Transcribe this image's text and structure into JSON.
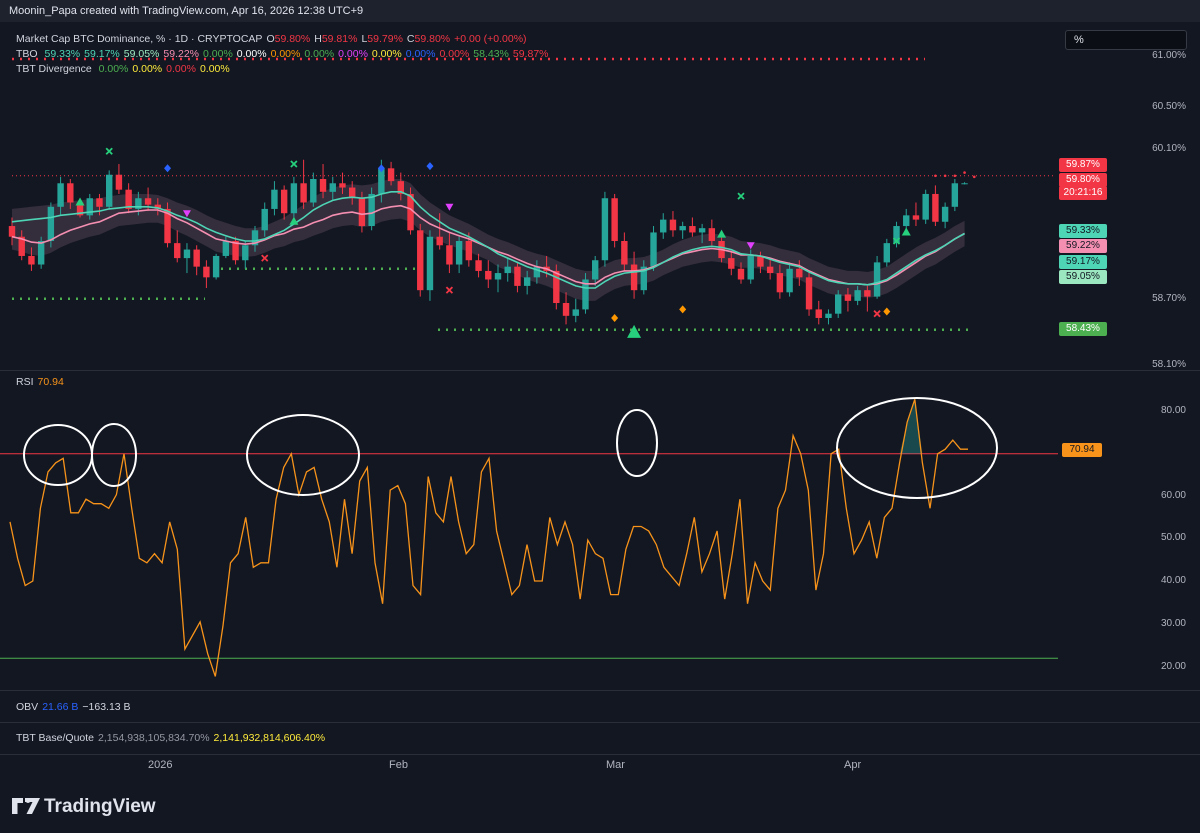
{
  "header": {
    "text": "Moonin_Papa created with TradingView.com, Apr 16, 2026 12:38 UTC+9"
  },
  "symbol_line": {
    "name": "Market Cap BTC Dominance, % · 1D · CRYPTOCAP",
    "o_label": "O",
    "o_value": "59.80%",
    "h_label": "H",
    "h_value": "59.81%",
    "l_label": "L",
    "l_value": "59.79%",
    "c_label": "C",
    "c_value": "59.80%",
    "change": "+0.00 (+0.00%)"
  },
  "tbo_line": {
    "name": "TBO",
    "values": [
      {
        "v": "59.33%",
        "color": "#4dd5b5"
      },
      {
        "v": "59.17%",
        "color": "#4dd5b5"
      },
      {
        "v": "59.05%",
        "color": "#9be8c0"
      },
      {
        "v": "59.22%",
        "color": "#f48fb1"
      },
      {
        "v": "0.00%",
        "color": "#4caf50"
      },
      {
        "v": "0.00%",
        "color": "#ffffff"
      },
      {
        "v": "0.00%",
        "color": "#ff9800"
      },
      {
        "v": "0.00%",
        "color": "#4caf50"
      },
      {
        "v": "0.00%",
        "color": "#e040fb"
      },
      {
        "v": "0.00%",
        "color": "#ffeb3b"
      },
      {
        "v": "0.00%",
        "color": "#2962ff"
      },
      {
        "v": "0.00%",
        "color": "#f23645"
      },
      {
        "v": "58.43%",
        "color": "#4caf50"
      },
      {
        "v": "59.87%",
        "color": "#f23645"
      }
    ]
  },
  "tbt_div_line": {
    "name": "TBT Divergence",
    "values": [
      {
        "v": "0.00%",
        "color": "#4caf50"
      },
      {
        "v": "0.00%",
        "color": "#ffeb3b"
      },
      {
        "v": "0.00%",
        "color": "#f23645"
      },
      {
        "v": "0.00%",
        "color": "#ffeb3b"
      }
    ]
  },
  "unit_box": "%",
  "price_axis": [
    "61.00%",
    "60.50%",
    "60.10%",
    "58.70%",
    "58.10%"
  ],
  "price_tags": [
    {
      "label": "59.87%",
      "color": "#f23645"
    },
    {
      "label": "59.80%",
      "color": "#f23645"
    },
    {
      "label": "20:21:16",
      "color": "#f23645"
    },
    {
      "label": "59.33%",
      "color": "#4dd5b5"
    },
    {
      "label": "59.22%",
      "color": "#f48fb1"
    },
    {
      "label": "59.17%",
      "color": "#4dd5b5"
    },
    {
      "label": "59.05%",
      "color": "#9be8c0"
    },
    {
      "label": "58.43%",
      "color": "#4caf50"
    }
  ],
  "rsi": {
    "label": "RSI",
    "value": "70.94",
    "axis": [
      "80.00",
      "70.00",
      "60.00",
      "50.00",
      "40.00",
      "30.00",
      "20.00"
    ],
    "upper": 70,
    "lower": 25
  },
  "obv": {
    "label": "OBV",
    "v1": "21.66 B",
    "v2": "−163.13 B"
  },
  "tbt_bq": {
    "label": "TBT Base/Quote",
    "v1": "2,154,938,105,834.70%",
    "v2": "2,141,932,814,606.40%"
  },
  "time_axis": [
    "2026",
    "Feb",
    "Mar",
    "Apr"
  ],
  "brand": "TradingView",
  "colors": {
    "up": "#26a69a",
    "down": "#f23645",
    "rsi": "#f7931a",
    "ema": "#f48fb1",
    "sma": "#4dd5b5"
  },
  "chart_data": [
    {
      "type": "candlestick",
      "title": "Market Cap BTC Dominance, % · 1D · CRYPTOCAP",
      "ylim": [
        58.1,
        61.0
      ],
      "candles_ohlc": [
        [
          59.4,
          59.48,
          59.22,
          59.3
        ],
        [
          59.3,
          59.36,
          59.08,
          59.12
        ],
        [
          59.12,
          59.2,
          58.98,
          59.04
        ],
        [
          59.04,
          59.3,
          59.0,
          59.26
        ],
        [
          59.26,
          59.62,
          59.2,
          59.58
        ],
        [
          59.58,
          59.86,
          59.5,
          59.8
        ],
        [
          59.8,
          59.84,
          59.56,
          59.62
        ],
        [
          59.62,
          59.66,
          59.48,
          59.5
        ],
        [
          59.5,
          59.7,
          59.46,
          59.66
        ],
        [
          59.66,
          59.7,
          59.5,
          59.58
        ],
        [
          59.58,
          59.92,
          59.56,
          59.88
        ],
        [
          59.88,
          59.98,
          59.7,
          59.74
        ],
        [
          59.74,
          59.8,
          59.52,
          59.56
        ],
        [
          59.56,
          59.72,
          59.5,
          59.66
        ],
        [
          59.66,
          59.76,
          59.54,
          59.6
        ],
        [
          59.6,
          59.66,
          59.5,
          59.56
        ],
        [
          59.56,
          59.62,
          59.2,
          59.24
        ],
        [
          59.24,
          59.36,
          59.06,
          59.1
        ],
        [
          59.1,
          59.24,
          58.96,
          59.18
        ],
        [
          59.18,
          59.22,
          58.94,
          59.02
        ],
        [
          59.02,
          59.08,
          58.82,
          58.92
        ],
        [
          58.92,
          59.14,
          58.9,
          59.12
        ],
        [
          59.12,
          59.3,
          59.1,
          59.26
        ],
        [
          59.26,
          59.3,
          59.04,
          59.08
        ],
        [
          59.08,
          59.26,
          59.0,
          59.22
        ],
        [
          59.22,
          59.4,
          59.16,
          59.36
        ],
        [
          59.36,
          59.62,
          59.3,
          59.56
        ],
        [
          59.56,
          59.82,
          59.5,
          59.74
        ],
        [
          59.74,
          59.78,
          59.46,
          59.52
        ],
        [
          59.52,
          59.86,
          59.48,
          59.8
        ],
        [
          59.8,
          60.02,
          59.56,
          59.62
        ],
        [
          59.62,
          59.9,
          59.58,
          59.84
        ],
        [
          59.84,
          59.98,
          59.66,
          59.72
        ],
        [
          59.72,
          59.86,
          59.64,
          59.8
        ],
        [
          59.8,
          59.9,
          59.7,
          59.76
        ],
        [
          59.76,
          59.82,
          59.6,
          59.66
        ],
        [
          59.66,
          59.72,
          59.34,
          59.4
        ],
        [
          59.4,
          59.76,
          59.36,
          59.7
        ],
        [
          59.7,
          60.02,
          59.62,
          59.94
        ],
        [
          59.94,
          60.0,
          59.78,
          59.82
        ],
        [
          59.82,
          59.9,
          59.64,
          59.7
        ],
        [
          59.7,
          59.76,
          59.32,
          59.36
        ],
        [
          59.36,
          59.42,
          58.74,
          58.8
        ],
        [
          58.8,
          59.36,
          58.7,
          59.3
        ],
        [
          59.3,
          59.52,
          59.18,
          59.22
        ],
        [
          59.22,
          59.34,
          58.96,
          59.04
        ],
        [
          59.04,
          59.3,
          58.96,
          59.26
        ],
        [
          59.26,
          59.34,
          59.02,
          59.08
        ],
        [
          59.08,
          59.14,
          58.92,
          58.98
        ],
        [
          58.98,
          59.08,
          58.82,
          58.9
        ],
        [
          58.9,
          59.04,
          58.78,
          58.96
        ],
        [
          58.96,
          59.1,
          58.88,
          59.02
        ],
        [
          59.02,
          59.06,
          58.78,
          58.84
        ],
        [
          58.84,
          58.98,
          58.76,
          58.92
        ],
        [
          58.92,
          59.08,
          58.86,
          59.02
        ],
        [
          59.02,
          59.12,
          58.92,
          58.98
        ],
        [
          58.98,
          59.04,
          58.62,
          58.68
        ],
        [
          58.68,
          58.78,
          58.48,
          58.56
        ],
        [
          58.56,
          58.72,
          58.5,
          58.62
        ],
        [
          58.62,
          58.96,
          58.58,
          58.9
        ],
        [
          58.9,
          59.12,
          58.84,
          59.08
        ],
        [
          59.08,
          59.72,
          59.02,
          59.66
        ],
        [
          59.66,
          59.7,
          59.2,
          59.26
        ],
        [
          59.26,
          59.34,
          58.98,
          59.04
        ],
        [
          59.04,
          59.16,
          58.72,
          58.8
        ],
        [
          58.8,
          59.08,
          58.76,
          59.02
        ],
        [
          59.02,
          59.4,
          58.98,
          59.34
        ],
        [
          59.34,
          59.52,
          59.28,
          59.46
        ],
        [
          59.46,
          59.54,
          59.3,
          59.36
        ],
        [
          59.36,
          59.44,
          59.28,
          59.4
        ],
        [
          59.4,
          59.48,
          59.3,
          59.34
        ],
        [
          59.34,
          59.42,
          59.24,
          59.38
        ],
        [
          59.38,
          59.46,
          59.22,
          59.26
        ],
        [
          59.26,
          59.34,
          59.06,
          59.1
        ],
        [
          59.1,
          59.16,
          58.94,
          59.0
        ],
        [
          59.0,
          59.06,
          58.86,
          58.9
        ],
        [
          58.9,
          59.18,
          58.86,
          59.12
        ],
        [
          59.12,
          59.16,
          58.96,
          59.02
        ],
        [
          59.02,
          59.1,
          58.9,
          58.96
        ],
        [
          58.96,
          59.04,
          58.72,
          58.78
        ],
        [
          58.78,
          59.06,
          58.74,
          59.0
        ],
        [
          59.0,
          59.08,
          58.84,
          58.92
        ],
        [
          58.92,
          58.98,
          58.56,
          58.62
        ],
        [
          58.62,
          58.7,
          58.48,
          58.54
        ],
        [
          58.54,
          58.62,
          58.48,
          58.58
        ],
        [
          58.58,
          58.8,
          58.54,
          58.76
        ],
        [
          58.76,
          58.82,
          58.6,
          58.7
        ],
        [
          58.7,
          58.84,
          58.66,
          58.8
        ],
        [
          58.8,
          58.84,
          58.6,
          58.74
        ],
        [
          58.74,
          59.12,
          58.72,
          59.06
        ],
        [
          59.06,
          59.28,
          59.02,
          59.24
        ],
        [
          59.24,
          59.44,
          59.2,
          59.4
        ],
        [
          59.4,
          59.56,
          59.36,
          59.5
        ],
        [
          59.5,
          59.62,
          59.4,
          59.46
        ],
        [
          59.46,
          59.74,
          59.42,
          59.7
        ],
        [
          59.7,
          59.78,
          59.4,
          59.44
        ],
        [
          59.44,
          59.62,
          59.38,
          59.58
        ],
        [
          59.58,
          59.84,
          59.54,
          59.8
        ],
        [
          59.8,
          59.81,
          59.79,
          59.8
        ]
      ],
      "ema_pink": [
        59.3,
        59.28,
        59.25,
        59.24,
        59.27,
        59.32,
        59.36,
        59.39,
        59.42,
        59.44,
        59.48,
        59.52,
        59.53,
        59.54,
        59.55,
        59.55,
        59.52,
        59.47,
        59.43,
        59.38,
        59.33,
        59.28,
        59.26,
        59.24,
        59.23,
        59.24,
        59.27,
        59.31,
        59.33,
        59.37,
        59.39,
        59.43,
        59.46,
        59.5,
        59.52,
        59.53,
        59.51,
        59.52,
        59.56,
        59.58,
        59.59,
        59.56,
        59.48,
        59.42,
        59.38,
        59.34,
        59.31,
        59.28,
        59.24,
        59.2,
        59.16,
        59.13,
        59.09,
        59.05,
        59.02,
        59.0,
        58.96,
        58.92,
        58.88,
        58.86,
        58.86,
        58.92,
        58.96,
        58.98,
        58.98,
        58.99,
        59.02,
        59.06,
        59.1,
        59.14,
        59.16,
        59.18,
        59.19,
        59.18,
        59.16,
        59.13,
        59.13,
        59.12,
        59.1,
        59.07,
        59.05,
        59.03,
        58.98,
        58.94,
        58.9,
        58.88,
        58.86,
        58.86,
        58.85,
        58.86,
        58.89,
        58.94,
        59.0,
        59.06,
        59.12,
        59.16,
        59.22,
        59.28,
        59.33
      ],
      "sma_teal": [
        59.44,
        59.45,
        59.46,
        59.47,
        59.48,
        59.5,
        59.51,
        59.52,
        59.53,
        59.54,
        59.56,
        59.57,
        59.58,
        59.58,
        59.58,
        59.57,
        59.54,
        59.5,
        59.47,
        59.43,
        59.38,
        59.34,
        59.31,
        59.28,
        59.26,
        59.26,
        59.28,
        59.32,
        59.36,
        59.42,
        59.48,
        59.55,
        59.6,
        59.64,
        59.66,
        59.67,
        59.66,
        59.67,
        59.7,
        59.72,
        59.72,
        59.68,
        59.58,
        59.5,
        59.44,
        59.38,
        59.34,
        59.3,
        59.25,
        59.2,
        59.14,
        59.1,
        59.06,
        59.02,
        58.99,
        58.96,
        58.92,
        58.88,
        58.84,
        58.82,
        58.82,
        58.88,
        58.93,
        58.96,
        58.97,
        58.98,
        59.01,
        59.06,
        59.11,
        59.15,
        59.18,
        59.2,
        59.21,
        59.2,
        59.18,
        59.14,
        59.13,
        59.12,
        59.09,
        59.06,
        59.04,
        59.02,
        58.97,
        58.93,
        58.89,
        58.87,
        58.86,
        58.86,
        58.85,
        58.87,
        58.9,
        58.96,
        59.02,
        59.08,
        59.13,
        59.17,
        59.22,
        59.28,
        59.33
      ]
    },
    {
      "type": "line",
      "title": "RSI",
      "ylim": [
        18,
        88
      ],
      "series": [
        {
          "name": "RSI",
          "values": [
            55,
            47,
            41,
            42,
            58,
            66,
            68,
            69,
            57,
            57,
            60,
            59,
            59,
            58,
            61,
            70,
            58,
            47,
            46,
            48,
            46,
            55,
            49,
            27,
            30,
            33,
            26,
            21,
            32,
            46,
            48,
            56,
            45,
            46,
            46,
            60,
            67,
            70,
            61,
            66,
            67,
            60,
            55,
            45,
            60,
            48,
            64,
            67,
            46,
            37,
            62,
            63,
            59,
            41,
            39,
            65,
            57,
            55,
            65,
            55,
            48,
            50,
            66,
            69,
            53,
            46,
            39,
            41,
            50,
            42,
            42,
            56,
            50,
            55,
            50,
            38,
            51,
            48,
            47,
            39,
            39,
            49,
            54,
            54,
            53,
            50,
            45,
            43,
            41,
            48,
            56,
            44,
            48,
            53,
            38,
            48,
            60,
            37,
            46,
            42,
            40,
            58,
            62,
            74,
            70,
            62,
            40,
            48,
            70,
            71,
            58,
            48,
            51,
            55,
            47,
            56,
            58,
            68,
            77,
            82,
            68,
            58,
            70,
            71,
            73,
            71,
            71
          ]
        }
      ],
      "upper": 70,
      "lower": 25
    }
  ]
}
